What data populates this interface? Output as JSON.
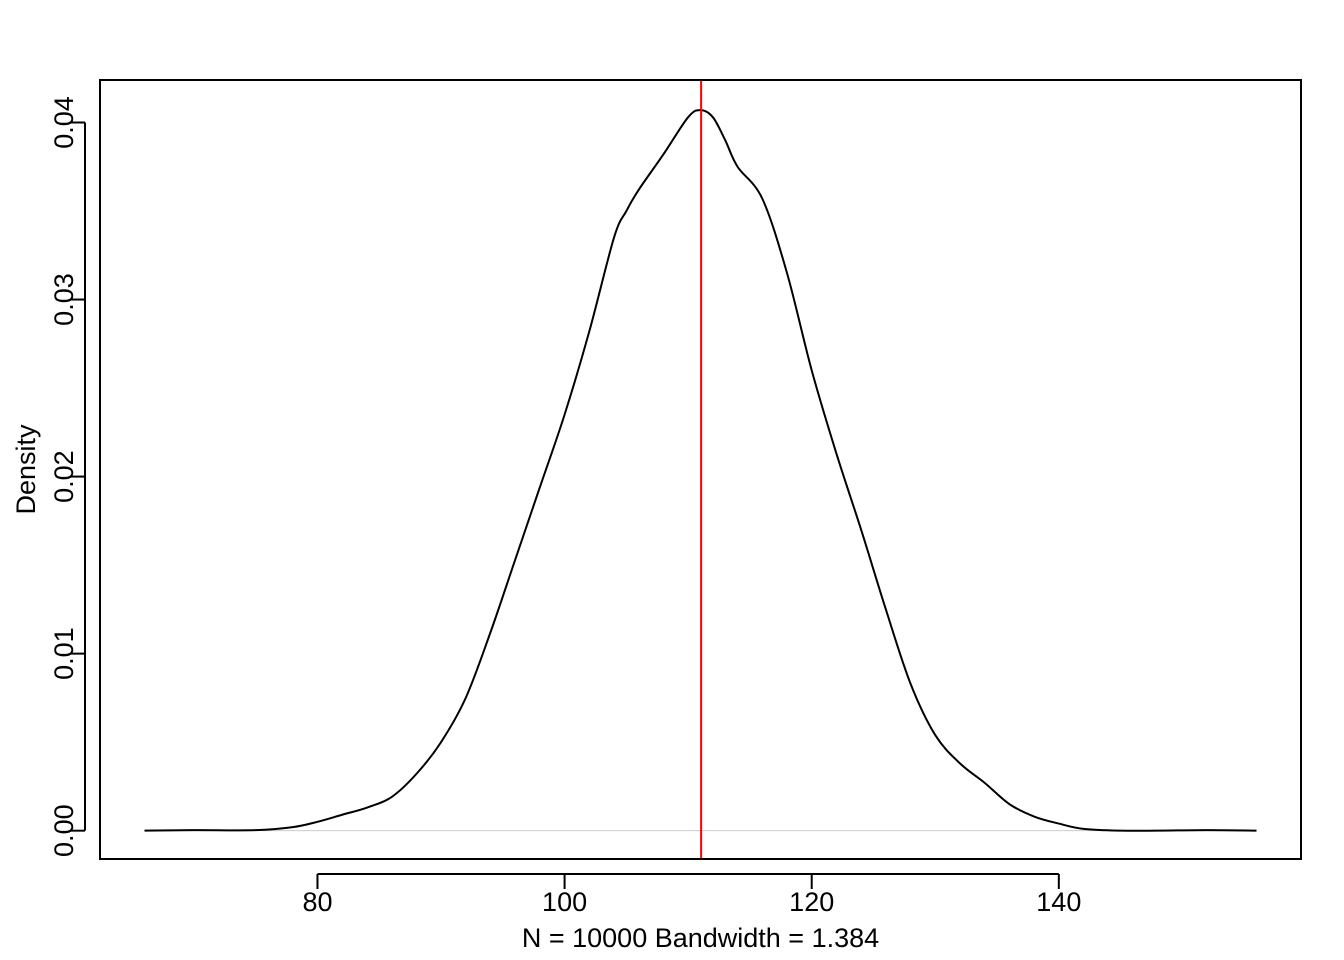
{
  "chart_data": {
    "type": "line",
    "title": "",
    "xlabel": "N = 10000   Bandwidth = 1.384",
    "ylabel": "Density",
    "xlim": [
      62.4,
      159.6
    ],
    "ylim": [
      -0.0016,
      0.0424
    ],
    "x_ticks": [
      80,
      100,
      120,
      140
    ],
    "x_tick_labels": [
      "80",
      "100",
      "120",
      "140"
    ],
    "y_ticks": [
      0.0,
      0.01,
      0.02,
      0.03,
      0.04
    ],
    "y_tick_labels": [
      "0.00",
      "0.01",
      "0.02",
      "0.03",
      "0.04"
    ],
    "grid": false,
    "zero_line": {
      "y": 0,
      "color": "#cccccc"
    },
    "reference_line": {
      "x": 111.05,
      "color": "#ff0000"
    },
    "series": [
      {
        "color": "#000000",
        "x": [
          66,
          70,
          75,
          78,
          80,
          82,
          84,
          86,
          88,
          90,
          92,
          94,
          96,
          98,
          100,
          102,
          104,
          105,
          106,
          108,
          110,
          111,
          112,
          113,
          114,
          116,
          118,
          120,
          122,
          124,
          126,
          128,
          130,
          132,
          134,
          136,
          138,
          140,
          142,
          145,
          148,
          152,
          156
        ],
        "y": [
          0.0,
          3e-05,
          3e-05,
          0.0002,
          0.0005,
          0.0009,
          0.0013,
          0.0019,
          0.0032,
          0.005,
          0.0075,
          0.0112,
          0.0153,
          0.0194,
          0.0235,
          0.0282,
          0.0335,
          0.035,
          0.0362,
          0.0382,
          0.0403,
          0.0407,
          0.0403,
          0.039,
          0.0375,
          0.0357,
          0.0315,
          0.026,
          0.0213,
          0.017,
          0.0125,
          0.0083,
          0.0054,
          0.0038,
          0.0027,
          0.0015,
          0.0008,
          0.0004,
          0.0001,
          0.0,
          0.0,
          3e-05,
          0.0
        ]
      }
    ]
  }
}
